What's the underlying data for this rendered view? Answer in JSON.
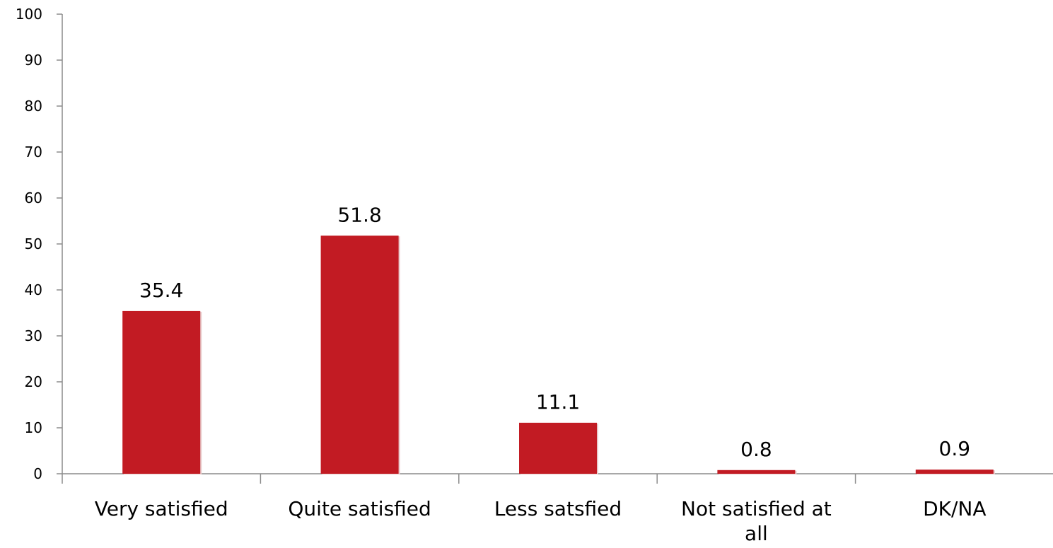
{
  "chart_data": {
    "type": "bar",
    "categories": [
      "Very satisfied",
      "Quite satisfied",
      "Less satsfied",
      "Not satisfied at all",
      "DK/NA"
    ],
    "values": [
      35.4,
      51.8,
      11.1,
      0.8,
      0.9
    ],
    "value_labels": [
      "35.4",
      "51.8",
      "11.1",
      "0.8",
      "0.9"
    ],
    "title": "",
    "xlabel": "",
    "ylabel": "",
    "ylim": [
      0,
      100
    ],
    "yticks": [
      0,
      10,
      20,
      30,
      40,
      50,
      60,
      70,
      80,
      90,
      100
    ],
    "grid": false,
    "legend": "none",
    "bar_color": "#c21b23",
    "axis_color": "#8c8c8c"
  }
}
